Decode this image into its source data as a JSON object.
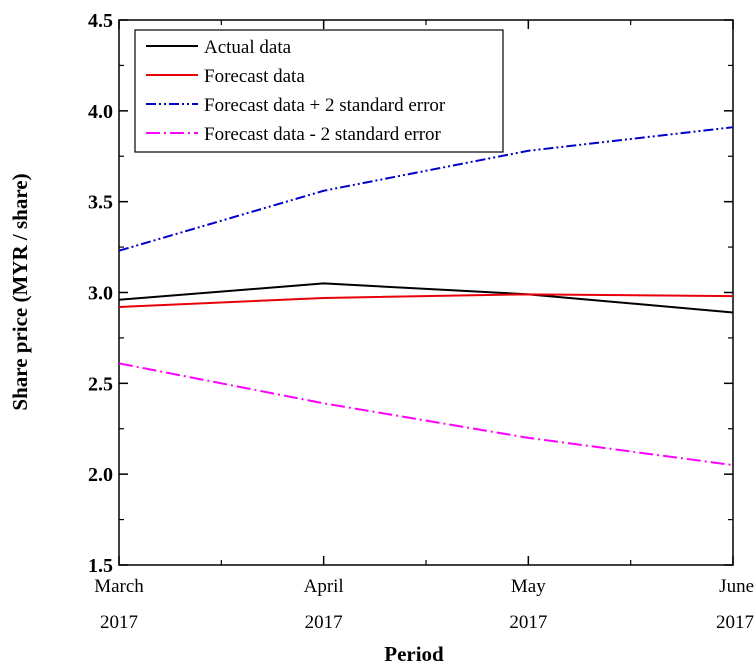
{
  "chart_data": {
    "type": "line",
    "categories": [
      {
        "line1": "March",
        "line2": "2017"
      },
      {
        "line1": "April",
        "line2": "2017"
      },
      {
        "line1": "May",
        "line2": "2017"
      },
      {
        "line1": "June",
        "line2": "2017"
      }
    ],
    "series": [
      {
        "name": "Actual data",
        "color": "#000000",
        "dash": "solid",
        "values": [
          2.96,
          3.05,
          2.99,
          2.89
        ]
      },
      {
        "name": "Forecast data",
        "color": "#e8000b",
        "dash": "solid",
        "values": [
          2.92,
          2.97,
          2.99,
          2.98
        ]
      },
      {
        "name": "Forecast data + 2 standard error",
        "color": "#0000cc",
        "dash": "dash-dot-dot",
        "values": [
          3.23,
          3.56,
          3.78,
          3.91
        ]
      },
      {
        "name": "Forecast data - 2 standard error",
        "color": "#ff00ff",
        "dash": "dash-dot",
        "values": [
          2.61,
          2.39,
          2.2,
          2.05
        ]
      }
    ],
    "xlabel": "Period",
    "ylabel": "Share price (MYR / share)",
    "ylim": [
      1.5,
      4.5
    ],
    "yticks": [
      "1.5",
      "2.0",
      "2.5",
      "3.0",
      "3.5",
      "4.0",
      "4.5"
    ],
    "grid": false,
    "legend_position": "top-left"
  }
}
